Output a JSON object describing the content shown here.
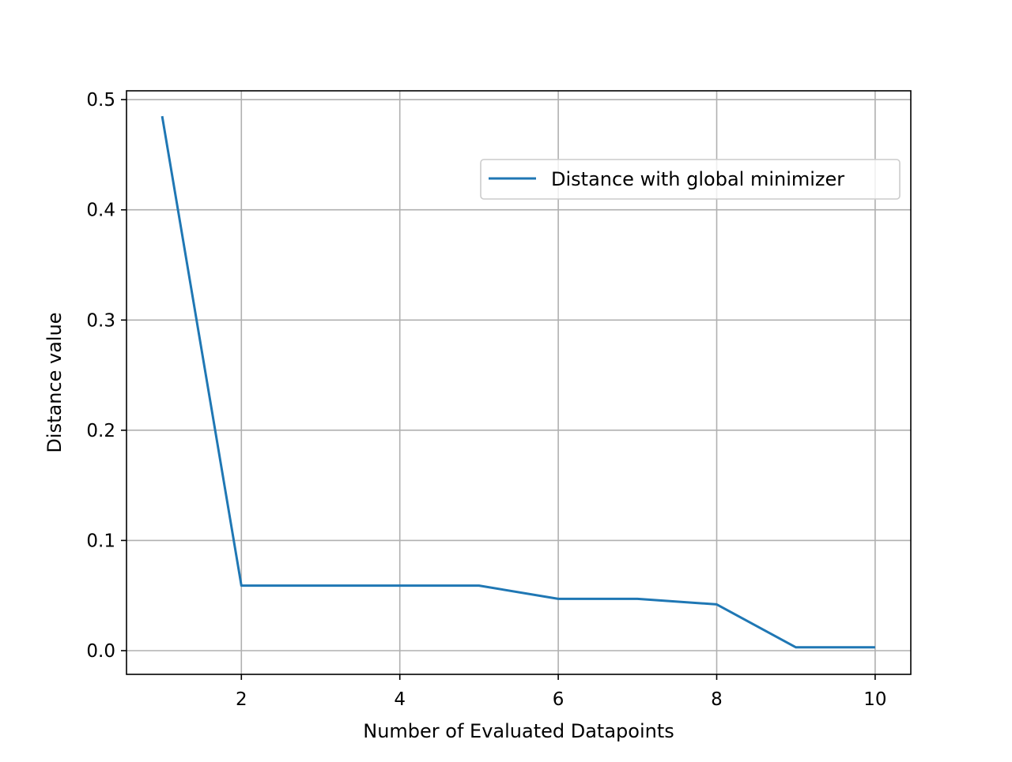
{
  "chart_data": {
    "type": "line",
    "title": "",
    "xlabel": "Number of Evaluated Datapoints",
    "ylabel": "Distance value",
    "xlim": [
      0.55,
      10.45
    ],
    "ylim": [
      -0.0215,
      0.508
    ],
    "x_ticks": [
      2,
      4,
      6,
      8,
      10
    ],
    "x_tick_labels": [
      "2",
      "4",
      "6",
      "8",
      "10"
    ],
    "y_ticks": [
      0.0,
      0.1,
      0.2,
      0.3,
      0.4,
      0.5
    ],
    "y_tick_labels": [
      "0.0",
      "0.1",
      "0.2",
      "0.3",
      "0.4",
      "0.5"
    ],
    "grid": true,
    "legend_position": "upper-right",
    "series": [
      {
        "name": "Distance with global minimizer",
        "color": "#1f77b4",
        "x": [
          1,
          2,
          3,
          4,
          5,
          6,
          7,
          8,
          9,
          10
        ],
        "y": [
          0.485,
          0.059,
          0.059,
          0.059,
          0.059,
          0.047,
          0.047,
          0.042,
          0.003,
          0.003
        ]
      }
    ]
  }
}
